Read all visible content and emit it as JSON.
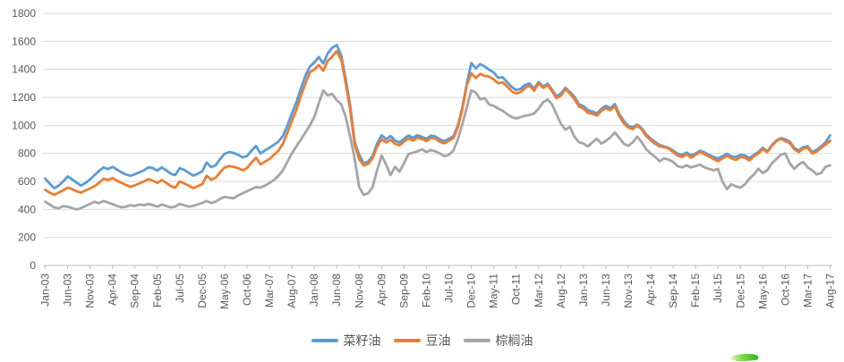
{
  "chart_data": {
    "type": "line",
    "title": "",
    "xlabel": "",
    "ylabel": "",
    "x_range": [
      "Jan-03",
      "Aug-17"
    ],
    "frequency": "monthly",
    "points_per_series": 176,
    "ylim": [
      0,
      1800
    ],
    "y_tick_step": 200,
    "grid": "horizontal",
    "legend_position": "bottom",
    "x_tick_labels": [
      "Jan-03",
      "Jun-03",
      "Nov-03",
      "Apr-04",
      "Sep-04",
      "Feb-05",
      "Jul-05",
      "Dec-05",
      "May-06",
      "Oct-06",
      "Mar-07",
      "Aug-07",
      "Jan-08",
      "Jun-08",
      "Nov-08",
      "Apr-09",
      "Sep-09",
      "Feb-10",
      "Jul-10",
      "Dec-10",
      "May-11",
      "Oct-11",
      "Mar-12",
      "Aug-12",
      "Jan-13",
      "Jun-13",
      "Nov-13",
      "Apr-14",
      "Sep-14",
      "Feb-15",
      "Jul-15",
      "Dec-15",
      "May-16",
      "Oct-16",
      "Mar-17",
      "Aug-17"
    ],
    "x_tick_month_interval": 5,
    "series": [
      {
        "name": "菜籽油",
        "color": "#5B9BD5",
        "values": [
          620,
          585,
          552,
          570,
          600,
          635,
          615,
          592,
          570,
          590,
          615,
          645,
          675,
          700,
          688,
          705,
          685,
          665,
          650,
          640,
          652,
          665,
          680,
          700,
          695,
          678,
          700,
          680,
          655,
          645,
          695,
          682,
          662,
          642,
          655,
          672,
          735,
          702,
          715,
          760,
          798,
          810,
          804,
          790,
          772,
          782,
          820,
          853,
          800,
          822,
          840,
          862,
          885,
          925,
          1000,
          1085,
          1165,
          1265,
          1355,
          1420,
          1450,
          1488,
          1442,
          1515,
          1555,
          1575,
          1500,
          1330,
          1140,
          880,
          790,
          728,
          742,
          782,
          870,
          930,
          902,
          925,
          893,
          878,
          905,
          928,
          912,
          930,
          918,
          905,
          928,
          922,
          900,
          888,
          905,
          922,
          1000,
          1130,
          1300,
          1445,
          1408,
          1438,
          1420,
          1398,
          1378,
          1340,
          1344,
          1308,
          1275,
          1253,
          1262,
          1290,
          1300,
          1262,
          1310,
          1278,
          1298,
          1254,
          1208,
          1228,
          1268,
          1238,
          1205,
          1150,
          1138,
          1108,
          1100,
          1085,
          1118,
          1140,
          1124,
          1152,
          1080,
          1032,
          996,
          986,
          1006,
          980,
          936,
          906,
          880,
          860,
          850,
          840,
          820,
          798,
          790,
          806,
          786,
          800,
          820,
          806,
          790,
          775,
          764,
          780,
          798,
          780,
          775,
          790,
          786,
          766,
          790,
          810,
          840,
          814,
          860,
          892,
          910,
          900,
          884,
          840,
          820,
          846,
          850,
          810,
          826,
          850,
          880,
          930
        ]
      },
      {
        "name": "豆油",
        "color": "#ED7D31",
        "values": [
          540,
          520,
          505,
          520,
          536,
          556,
          545,
          530,
          520,
          536,
          550,
          566,
          590,
          620,
          610,
          625,
          605,
          590,
          575,
          562,
          572,
          586,
          600,
          616,
          606,
          590,
          610,
          590,
          566,
          556,
          600,
          586,
          570,
          552,
          566,
          580,
          640,
          612,
          626,
          665,
          700,
          710,
          705,
          695,
          680,
          696,
          735,
          770,
          722,
          742,
          760,
          790,
          820,
          870,
          950,
          1032,
          1112,
          1212,
          1300,
          1380,
          1400,
          1432,
          1390,
          1462,
          1492,
          1530,
          1468,
          1300,
          1110,
          862,
          758,
          714,
          726,
          766,
          850,
          902,
          878,
          898,
          868,
          858,
          884,
          908,
          892,
          912,
          902,
          888,
          912,
          906,
          882,
          872,
          892,
          908,
          988,
          1118,
          1290,
          1372,
          1338,
          1368,
          1354,
          1348,
          1328,
          1300,
          1308,
          1278,
          1244,
          1228,
          1238,
          1268,
          1284,
          1248,
          1300,
          1268,
          1288,
          1244,
          1194,
          1214,
          1258,
          1228,
          1188,
          1134,
          1120,
          1090,
          1084,
          1070,
          1104,
          1124,
          1108,
          1138,
          1064,
          1014,
          984,
          974,
          1000,
          970,
          924,
          894,
          868,
          850,
          844,
          834,
          810,
          784,
          774,
          794,
          770,
          790,
          810,
          794,
          778,
          760,
          744,
          764,
          784,
          764,
          754,
          774,
          770,
          750,
          780,
          800,
          830,
          810,
          854,
          888,
          904,
          888,
          874,
          830,
          810,
          834,
          840,
          800,
          814,
          840,
          864,
          890
        ]
      },
      {
        "name": "棕榈油",
        "color": "#A5A5A5",
        "values": [
          455,
          435,
          415,
          408,
          424,
          420,
          410,
          400,
          410,
          425,
          440,
          455,
          445,
          460,
          450,
          438,
          425,
          415,
          420,
          430,
          425,
          435,
          430,
          440,
          430,
          420,
          435,
          425,
          415,
          420,
          440,
          430,
          420,
          426,
          436,
          446,
          460,
          446,
          456,
          475,
          490,
          484,
          480,
          500,
          515,
          530,
          545,
          560,
          556,
          570,
          590,
          610,
          640,
          680,
          740,
          800,
          850,
          900,
          950,
          1000,
          1060,
          1160,
          1250,
          1215,
          1225,
          1180,
          1150,
          1060,
          920,
          760,
          560,
          505,
          515,
          560,
          680,
          785,
          720,
          645,
          705,
          670,
          730,
          795,
          805,
          815,
          830,
          810,
          825,
          815,
          800,
          780,
          790,
          820,
          900,
          1010,
          1130,
          1250,
          1235,
          1185,
          1195,
          1150,
          1140,
          1120,
          1105,
          1080,
          1060,
          1050,
          1060,
          1070,
          1075,
          1085,
          1120,
          1165,
          1185,
          1150,
          1080,
          1010,
          970,
          990,
          920,
          880,
          870,
          850,
          880,
          905,
          870,
          890,
          915,
          950,
          910,
          870,
          855,
          880,
          920,
          880,
          830,
          800,
          775,
          745,
          765,
          755,
          740,
          710,
          700,
          715,
          700,
          710,
          720,
          700,
          690,
          680,
          690,
          600,
          545,
          580,
          565,
          555,
          580,
          620,
          650,
          690,
          660,
          680,
          730,
          760,
          790,
          800,
          730,
          690,
          720,
          740,
          700,
          680,
          650,
          660,
          705,
          715
        ]
      }
    ]
  },
  "legend": {
    "items": [
      {
        "label": "菜籽油",
        "color": "#5B9BD5"
      },
      {
        "label": "豆油",
        "color": "#ED7D31"
      },
      {
        "label": "棕榈油",
        "color": "#A5A5A5"
      }
    ]
  },
  "colors": {
    "background": "#FFFFFF",
    "gridline": "#D9D9D9",
    "axis_line": "#BFBFBF",
    "tick_text": "#595959"
  },
  "decor": {
    "green_swoosh_bottom_right": true
  }
}
